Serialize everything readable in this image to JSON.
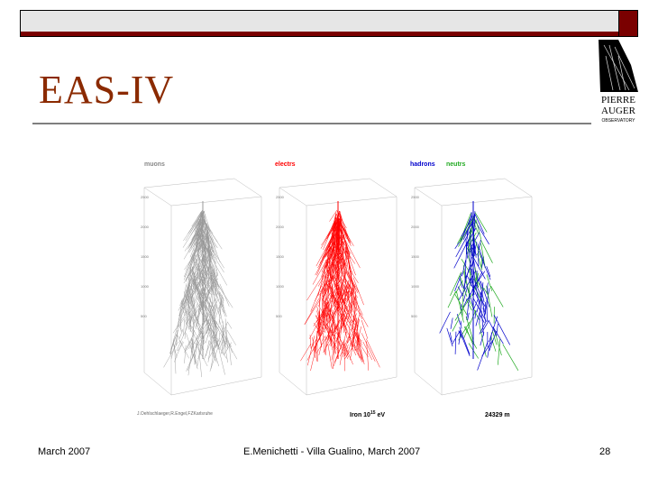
{
  "slide": {
    "title": "EAS-IV",
    "colors": {
      "accent": "#7a0000",
      "title": "#8b2a00",
      "bar": "#e6e6e6"
    }
  },
  "logo": {
    "line1": "PIERRE",
    "line2": "AUGER",
    "line3": "OBSERVATORY"
  },
  "figure": {
    "panels": [
      {
        "label": "muons",
        "color": "#999999",
        "seed": 7
      },
      {
        "label": "electrs",
        "color": "#ff0000",
        "seed": 19
      },
      {
        "label": "hadrons",
        "label2": "neutrs",
        "color": "#0000cc",
        "color2": "#22aa22",
        "seed": 31
      }
    ],
    "y_ticks": [
      "2500",
      "2000",
      "1500",
      "1000",
      "500"
    ],
    "credit": "J.Oehlschlaeger,R.Engel,FZKarlsruhe",
    "caption_left": "Iron 10",
    "caption_exp": "15",
    "caption_unit": "eV",
    "caption_right": "24329 m"
  },
  "footer": {
    "date": "March 2007",
    "center": "E.Menichetti - Villa Gualino, March 2007",
    "page": "28"
  }
}
